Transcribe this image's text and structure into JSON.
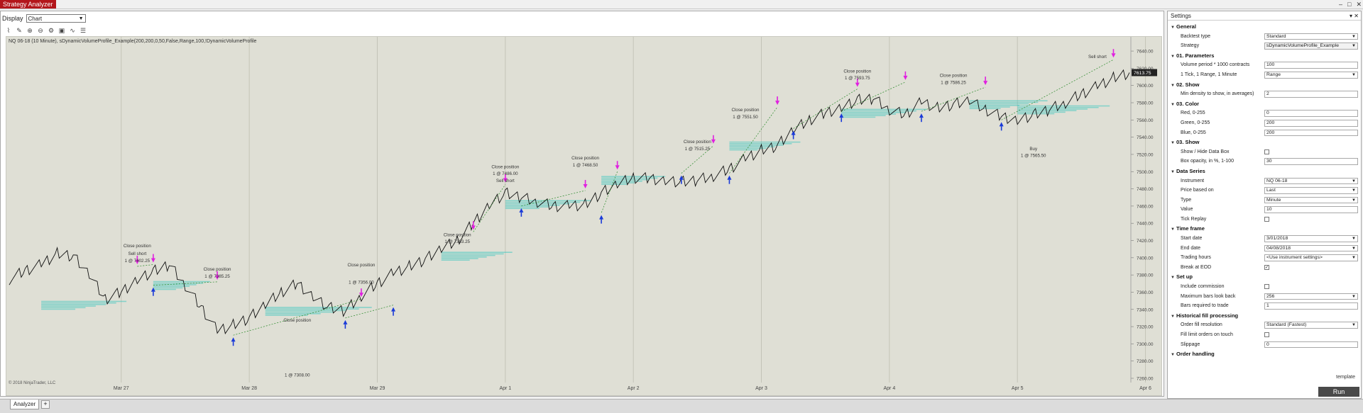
{
  "app": {
    "title": "Strategy Analyzer",
    "win_controls": [
      "–",
      "□",
      "✕"
    ]
  },
  "display": {
    "label": "Display",
    "value": "Chart"
  },
  "toolbar": {
    "icons": [
      "bar-style-icon",
      "draw-icon",
      "zoom-in-icon",
      "zoom-out-icon",
      "properties-icon",
      "snapshot-icon",
      "indicator-icon",
      "strategy-icon"
    ]
  },
  "chart": {
    "label": "NQ 06-18 (10 Minute), sDynamicVolumeProfile_Example(200,200,0,50,False,Range,100,!DynamicVolumeProfile",
    "copyright": "© 2018 NinjaTrader, LLC",
    "price_marker": "7613.75"
  },
  "chart_data": {
    "type": "line",
    "series": [
      {
        "values": [
          7375,
          7385,
          7392,
          7405,
          7402,
          7380,
          7352,
          7360,
          7375,
          7384,
          7392,
          7368,
          7342,
          7315,
          7322,
          7330,
          7345,
          7360,
          7370,
          7355,
          7342,
          7338,
          7356,
          7370,
          7382,
          7390,
          7398,
          7410,
          7420,
          7440,
          7462,
          7475,
          7470,
          7465,
          7460,
          7460,
          7462,
          7475,
          7485,
          7493,
          7492,
          7490,
          7488,
          7490,
          7495,
          7503,
          7515,
          7525,
          7530,
          7548,
          7560,
          7568,
          7575,
          7583,
          7585,
          7572,
          7566,
          7581,
          7574,
          7578,
          7582,
          7572,
          7564,
          7560,
          7566,
          7572,
          7580,
          7590,
          7599,
          7609,
          7615
        ]
      }
    ],
    "xlabel": "",
    "ylabel": "",
    "x_tick_labels": [
      "Mar 27",
      "Mar 28",
      "Mar 29",
      "Apr 1",
      "Apr 2",
      "Apr 3",
      "Apr 4",
      "Apr 5",
      "Apr 6"
    ],
    "y_tick_labels": [
      "7640.00",
      "7620.00",
      "7600.00",
      "7580.00",
      "7560.00",
      "7540.00",
      "7520.00",
      "7500.00",
      "7480.00",
      "7460.00",
      "7440.00",
      "7420.00",
      "7400.00",
      "7380.00",
      "7360.00",
      "7340.00",
      "7320.00",
      "7300.00",
      "7280.00",
      "7260.00"
    ],
    "ylim": [
      7260,
      7645
    ],
    "grid": true,
    "annotations": [
      {
        "text": "Close position",
        "i": 8,
        "price": 7412
      },
      {
        "text": "Sell short",
        "i": 8,
        "price": 7403
      },
      {
        "text": "1 @ 7402.25",
        "i": 8,
        "price": 7395
      },
      {
        "text": "Close position",
        "i": 13,
        "price": 7385
      },
      {
        "text": "1 @ 7385.25",
        "i": 13,
        "price": 7377
      },
      {
        "text": "Close position",
        "i": 18,
        "price": 7326
      },
      {
        "text": "1 @ 7308.00",
        "i": 18,
        "price": 7262
      },
      {
        "text": "Close position",
        "i": 22,
        "price": 7390
      },
      {
        "text": "1 @ 7356.00",
        "i": 22,
        "price": 7370
      },
      {
        "text": "Close position",
        "i": 28,
        "price": 7425
      },
      {
        "text": "1 @ 7393.25",
        "i": 28,
        "price": 7417
      },
      {
        "text": "Close position",
        "i": 31,
        "price": 7504
      },
      {
        "text": "1 @ 7486.00",
        "i": 31,
        "price": 7496
      },
      {
        "text": "Sell short",
        "i": 31,
        "price": 7488
      },
      {
        "text": "Close position",
        "i": 36,
        "price": 7514
      },
      {
        "text": "1 @ 7468.50",
        "i": 36,
        "price": 7506
      },
      {
        "text": "Close position",
        "i": 43,
        "price": 7533
      },
      {
        "text": "1 @ 7515.25",
        "i": 43,
        "price": 7525
      },
      {
        "text": "Close position",
        "i": 46,
        "price": 7570
      },
      {
        "text": "1 @ 7551.50",
        "i": 46,
        "price": 7562
      },
      {
        "text": "Close position",
        "i": 53,
        "price": 7615
      },
      {
        "text": "1 @ 7593.75",
        "i": 53,
        "price": 7607
      },
      {
        "text": "Close position",
        "i": 59,
        "price": 7610
      },
      {
        "text": "1 @ 7586.25",
        "i": 59,
        "price": 7602
      },
      {
        "text": "Sell short",
        "i": 68,
        "price": 7632
      },
      {
        "text": "Buy",
        "i": 64,
        "price": 7525
      },
      {
        "text": "1 @ 7565.50",
        "i": 64,
        "price": 7517
      }
    ],
    "markers": [
      {
        "kind": "sell",
        "i": 8,
        "price": 7390
      },
      {
        "kind": "sell",
        "i": 9,
        "price": 7392
      },
      {
        "kind": "buy",
        "i": 9,
        "price": 7368
      },
      {
        "kind": "sell",
        "i": 13,
        "price": 7372
      },
      {
        "kind": "buy",
        "i": 14,
        "price": 7310
      },
      {
        "kind": "sell",
        "i": 22,
        "price": 7352
      },
      {
        "kind": "buy",
        "i": 21,
        "price": 7330
      },
      {
        "kind": "buy",
        "i": 24,
        "price": 7345
      },
      {
        "kind": "sell",
        "i": 29,
        "price": 7430
      },
      {
        "kind": "sell",
        "i": 31,
        "price": 7485
      },
      {
        "kind": "buy",
        "i": 32,
        "price": 7460
      },
      {
        "kind": "sell",
        "i": 36,
        "price": 7478
      },
      {
        "kind": "sell",
        "i": 38,
        "price": 7500
      },
      {
        "kind": "buy",
        "i": 37,
        "price": 7452
      },
      {
        "kind": "buy",
        "i": 42,
        "price": 7498
      },
      {
        "kind": "sell",
        "i": 44,
        "price": 7530
      },
      {
        "kind": "buy",
        "i": 45,
        "price": 7498
      },
      {
        "kind": "sell",
        "i": 48,
        "price": 7575
      },
      {
        "kind": "buy",
        "i": 49,
        "price": 7550
      },
      {
        "kind": "sell",
        "i": 53,
        "price": 7596
      },
      {
        "kind": "buy",
        "i": 52,
        "price": 7570
      },
      {
        "kind": "sell",
        "i": 56,
        "price": 7604
      },
      {
        "kind": "buy",
        "i": 57,
        "price": 7570
      },
      {
        "kind": "sell",
        "i": 61,
        "price": 7598
      },
      {
        "kind": "buy",
        "i": 62,
        "price": 7560
      },
      {
        "kind": "sell",
        "i": 69,
        "price": 7630
      }
    ]
  },
  "tabs": {
    "active": "Analyzer",
    "add": "+"
  },
  "settings": {
    "title": "Settings",
    "template": "template",
    "run": "Run",
    "sections": [
      {
        "name": "General",
        "props": [
          {
            "label": "Backtest type",
            "value": "Standard",
            "type": "dd"
          },
          {
            "label": "Strategy",
            "value": "sDynamicVolumeProfile_Example",
            "type": "dd"
          }
        ]
      },
      {
        "name": "01. Parameters",
        "props": [
          {
            "label": "Volume period * 1000 contracts",
            "value": "100",
            "type": "text"
          },
          {
            "label": "1 Tick, 1 Range, 1 Minute",
            "value": "Range",
            "type": "dd"
          }
        ]
      },
      {
        "name": "02. Show",
        "props": [
          {
            "label": "Min density to show, in averages)",
            "value": "2",
            "type": "text"
          }
        ]
      },
      {
        "name": "03. Color",
        "props": [
          {
            "label": "Red, 0-255",
            "value": "0",
            "type": "text"
          },
          {
            "label": "Green, 0-255",
            "value": "200",
            "type": "text"
          },
          {
            "label": "Blue, 0-255",
            "value": "200",
            "type": "text"
          }
        ]
      },
      {
        "name": "03. Show",
        "props": [
          {
            "label": "Show / Hide Data Box",
            "value": "",
            "type": "chk"
          },
          {
            "label": "Box opacity, in %, 1-100",
            "value": "30",
            "type": "text"
          }
        ]
      },
      {
        "name": "Data Series",
        "props": [
          {
            "label": "Instrument",
            "value": "NQ 06-18",
            "type": "dd"
          },
          {
            "label": "Price based on",
            "value": "Last",
            "type": "dd"
          },
          {
            "label": "Type",
            "value": "Minute",
            "type": "dd"
          },
          {
            "label": "Value",
            "value": "10",
            "type": "text"
          },
          {
            "label": "Tick Replay",
            "value": "",
            "type": "chk"
          }
        ]
      },
      {
        "name": "Time frame",
        "props": [
          {
            "label": "Start date",
            "value": "3/01/2018",
            "type": "dd"
          },
          {
            "label": "End date",
            "value": "04/08/2018",
            "type": "dd"
          },
          {
            "label": "Trading hours",
            "value": "<Use instrument settings>",
            "type": "dd"
          },
          {
            "label": "Break at EOD",
            "value": "✓",
            "type": "chk"
          }
        ]
      },
      {
        "name": "Set up",
        "props": [
          {
            "label": "Include commission",
            "value": "",
            "type": "chk"
          },
          {
            "label": "Maximum bars look back",
            "value": "256",
            "type": "dd"
          },
          {
            "label": "Bars required to trade",
            "value": "1",
            "type": "text"
          }
        ]
      },
      {
        "name": "Historical fill processing",
        "props": [
          {
            "label": "Order fill resolution",
            "value": "Standard (Fastest)",
            "type": "dd"
          },
          {
            "label": "Fill limit orders on touch",
            "value": "",
            "type": "chk"
          },
          {
            "label": "Slippage",
            "value": "0",
            "type": "text"
          }
        ]
      },
      {
        "name": "Order handling",
        "props": []
      }
    ]
  }
}
